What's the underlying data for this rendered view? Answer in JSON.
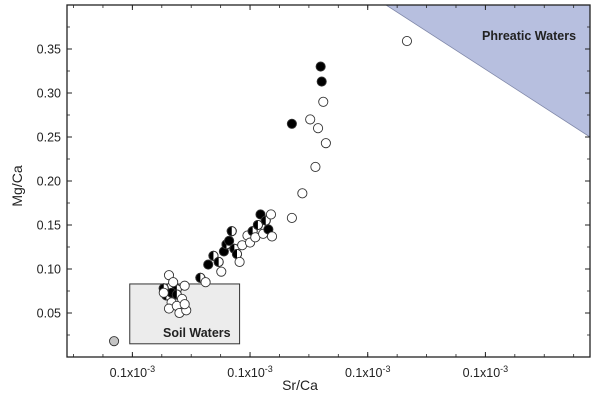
{
  "chart_data": {
    "type": "scatter",
    "title": "",
    "xlabel": "Sr/Ca",
    "ylabel": "Mg/Ca",
    "x_tick_labels": [
      "0.1x10-3",
      "0.1x10-3",
      "0.1x10-3",
      "0.1x10-3"
    ],
    "y_ticks": [
      0.05,
      0.1,
      0.15,
      0.2,
      0.25,
      0.3,
      0.35
    ],
    "y_tick_labels": [
      "0.05",
      "0.10",
      "0.15",
      "0.20",
      "0.25",
      "0.30",
      "0.35"
    ],
    "xlim": [
      0,
      1
    ],
    "ylim": [
      0,
      0.4
    ],
    "grid": false,
    "regions": [
      {
        "label": "Phreatic Waters",
        "color": "#b7bfdf",
        "polygon": [
          [
            0.61,
            0.4
          ],
          [
            1.0,
            0.4
          ],
          [
            1.0,
            0.25
          ]
        ]
      },
      {
        "label": "Soil Waters",
        "color": "#ececec",
        "box": {
          "x": [
            0.12,
            0.33
          ],
          "y": [
            0.015,
            0.083
          ]
        }
      }
    ],
    "marker_styles": {
      "open": "#ffffff",
      "filled": "#000000",
      "half": "#000000",
      "grey": "#c4c4c4"
    },
    "points": [
      {
        "x": 0.09,
        "y": 0.018,
        "s": "grey"
      },
      {
        "x": 0.195,
        "y": 0.093,
        "s": "open"
      },
      {
        "x": 0.2,
        "y": 0.08,
        "s": "open"
      },
      {
        "x": 0.21,
        "y": 0.077,
        "s": "half"
      },
      {
        "x": 0.225,
        "y": 0.081,
        "s": "open"
      },
      {
        "x": 0.19,
        "y": 0.07,
        "s": "half"
      },
      {
        "x": 0.2,
        "y": 0.073,
        "s": "filled"
      },
      {
        "x": 0.21,
        "y": 0.071,
        "s": "half"
      },
      {
        "x": 0.185,
        "y": 0.078,
        "s": "half"
      },
      {
        "x": 0.22,
        "y": 0.066,
        "s": "open"
      },
      {
        "x": 0.2,
        "y": 0.062,
        "s": "open"
      },
      {
        "x": 0.195,
        "y": 0.055,
        "s": "open"
      },
      {
        "x": 0.21,
        "y": 0.058,
        "s": "open"
      },
      {
        "x": 0.215,
        "y": 0.05,
        "s": "open"
      },
      {
        "x": 0.228,
        "y": 0.053,
        "s": "open"
      },
      {
        "x": 0.225,
        "y": 0.06,
        "s": "open"
      },
      {
        "x": 0.185,
        "y": 0.073,
        "s": "open"
      },
      {
        "x": 0.203,
        "y": 0.085,
        "s": "open"
      },
      {
        "x": 0.255,
        "y": 0.09,
        "s": "half"
      },
      {
        "x": 0.265,
        "y": 0.085,
        "s": "open"
      },
      {
        "x": 0.27,
        "y": 0.105,
        "s": "filled"
      },
      {
        "x": 0.28,
        "y": 0.115,
        "s": "half"
      },
      {
        "x": 0.29,
        "y": 0.108,
        "s": "half"
      },
      {
        "x": 0.295,
        "y": 0.097,
        "s": "open"
      },
      {
        "x": 0.3,
        "y": 0.12,
        "s": "filled"
      },
      {
        "x": 0.305,
        "y": 0.128,
        "s": "half"
      },
      {
        "x": 0.31,
        "y": 0.132,
        "s": "filled"
      },
      {
        "x": 0.32,
        "y": 0.123,
        "s": "half"
      },
      {
        "x": 0.325,
        "y": 0.117,
        "s": "half"
      },
      {
        "x": 0.315,
        "y": 0.143,
        "s": "half"
      },
      {
        "x": 0.33,
        "y": 0.108,
        "s": "open"
      },
      {
        "x": 0.335,
        "y": 0.127,
        "s": "open"
      },
      {
        "x": 0.345,
        "y": 0.138,
        "s": "open"
      },
      {
        "x": 0.35,
        "y": 0.13,
        "s": "open"
      },
      {
        "x": 0.355,
        "y": 0.143,
        "s": "half"
      },
      {
        "x": 0.36,
        "y": 0.136,
        "s": "open"
      },
      {
        "x": 0.365,
        "y": 0.15,
        "s": "half"
      },
      {
        "x": 0.37,
        "y": 0.162,
        "s": "filled"
      },
      {
        "x": 0.375,
        "y": 0.14,
        "s": "open"
      },
      {
        "x": 0.38,
        "y": 0.155,
        "s": "half"
      },
      {
        "x": 0.385,
        "y": 0.145,
        "s": "filled"
      },
      {
        "x": 0.39,
        "y": 0.162,
        "s": "open"
      },
      {
        "x": 0.392,
        "y": 0.137,
        "s": "open"
      },
      {
        "x": 0.43,
        "y": 0.158,
        "s": "open"
      },
      {
        "x": 0.45,
        "y": 0.186,
        "s": "open"
      },
      {
        "x": 0.43,
        "y": 0.265,
        "s": "filled"
      },
      {
        "x": 0.465,
        "y": 0.27,
        "s": "open"
      },
      {
        "x": 0.48,
        "y": 0.26,
        "s": "open"
      },
      {
        "x": 0.475,
        "y": 0.216,
        "s": "open"
      },
      {
        "x": 0.495,
        "y": 0.243,
        "s": "open"
      },
      {
        "x": 0.49,
        "y": 0.29,
        "s": "open"
      },
      {
        "x": 0.487,
        "y": 0.313,
        "s": "filled"
      },
      {
        "x": 0.485,
        "y": 0.33,
        "s": "filled"
      },
      {
        "x": 0.65,
        "y": 0.359,
        "s": "open"
      }
    ]
  }
}
